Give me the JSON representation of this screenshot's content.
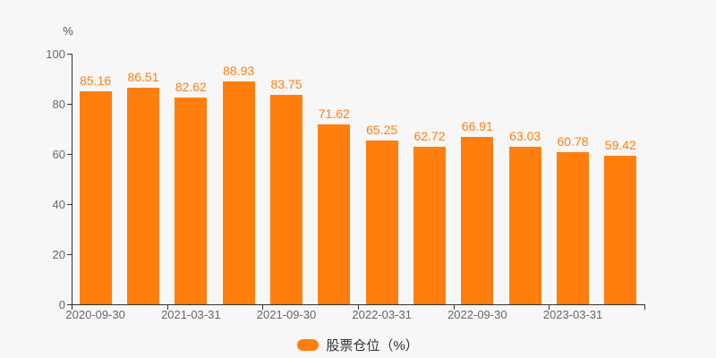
{
  "chart_data": {
    "type": "bar",
    "title": "",
    "ylabel": "%",
    "categories": [
      "2020-09-30",
      "",
      "2021-03-31",
      "",
      "2021-09-30",
      "",
      "2022-03-31",
      "",
      "2022-09-30",
      "",
      "2023-03-31",
      ""
    ],
    "series": [
      {
        "name": "股票仓位（%）",
        "values": [
          85.16,
          86.51,
          82.62,
          88.93,
          83.75,
          71.62,
          65.25,
          62.72,
          66.91,
          63.03,
          60.78,
          59.42
        ],
        "color": "#ff7e0e"
      }
    ],
    "value_labels": [
      "85.16",
      "86.51",
      "82.62",
      "88.93",
      "83.75",
      "71.62",
      "65.25",
      "62.72",
      "66.91",
      "63.03",
      "60.78",
      "59.42"
    ],
    "y_ticks": [
      0,
      20,
      40,
      60,
      80,
      100
    ],
    "ylim": [
      0,
      100
    ],
    "grid": false,
    "legend_position": "bottom"
  },
  "legend": {
    "items": [
      {
        "label": "股票仓位（%）",
        "color": "#ff7e0e"
      }
    ]
  },
  "colors": {
    "background": "#f7f7f7",
    "bar": "#ff7e0e",
    "value_label": "#ff7e0e",
    "axis_line": "#333333",
    "tick_label": "#666666",
    "legend_text": "#333333"
  }
}
